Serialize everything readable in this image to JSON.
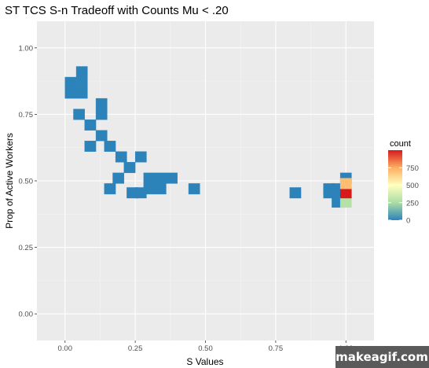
{
  "chart_data": {
    "type": "heatmap",
    "title": "ST TCS S-n Tradeoff with Counts Mu < .20",
    "xlabel": "S Values",
    "ylabel": "Prop of Active Workers",
    "xlim": [
      -0.1,
      1.1
    ],
    "ylim": [
      -0.1,
      1.1
    ],
    "x_ticks": [
      "0.00",
      "0.25",
      "0.50",
      "0.75",
      "1.00"
    ],
    "y_ticks": [
      "0.00",
      "0.25",
      "0.50",
      "0.75",
      "1.00"
    ],
    "bin_width": 0.04,
    "bin_height": 0.04,
    "grid": true,
    "legend": {
      "title": "count",
      "placement": "right",
      "labels": [
        "750",
        "500",
        "250",
        "0"
      ],
      "range": [
        0,
        1000
      ]
    },
    "tiles": [
      {
        "x": 0.02,
        "y": 0.83,
        "count": 1
      },
      {
        "x": 0.02,
        "y": 0.87,
        "count": 1
      },
      {
        "x": 0.06,
        "y": 0.83,
        "count": 1
      },
      {
        "x": 0.06,
        "y": 0.87,
        "count": 1
      },
      {
        "x": 0.06,
        "y": 0.91,
        "count": 1
      },
      {
        "x": 0.05,
        "y": 0.75,
        "count": 1
      },
      {
        "x": 0.09,
        "y": 0.71,
        "count": 1
      },
      {
        "x": 0.13,
        "y": 0.79,
        "count": 1
      },
      {
        "x": 0.13,
        "y": 0.75,
        "count": 1
      },
      {
        "x": 0.13,
        "y": 0.67,
        "count": 1
      },
      {
        "x": 0.09,
        "y": 0.63,
        "count": 1
      },
      {
        "x": 0.16,
        "y": 0.63,
        "count": 1
      },
      {
        "x": 0.2,
        "y": 0.59,
        "count": 1
      },
      {
        "x": 0.27,
        "y": 0.59,
        "count": 1
      },
      {
        "x": 0.23,
        "y": 0.55,
        "count": 1
      },
      {
        "x": 0.19,
        "y": 0.51,
        "count": 1
      },
      {
        "x": 0.16,
        "y": 0.47,
        "count": 1
      },
      {
        "x": 0.3,
        "y": 0.51,
        "count": 1
      },
      {
        "x": 0.34,
        "y": 0.51,
        "count": 1
      },
      {
        "x": 0.38,
        "y": 0.51,
        "count": 1
      },
      {
        "x": 0.3,
        "y": 0.47,
        "count": 1
      },
      {
        "x": 0.34,
        "y": 0.47,
        "count": 1
      },
      {
        "x": 0.24,
        "y": 0.455,
        "count": 1
      },
      {
        "x": 0.27,
        "y": 0.455,
        "count": 1
      },
      {
        "x": 0.46,
        "y": 0.47,
        "count": 1
      },
      {
        "x": 0.82,
        "y": 0.455,
        "count": 1
      },
      {
        "x": 0.94,
        "y": 0.47,
        "count": 1
      },
      {
        "x": 0.94,
        "y": 0.455,
        "count": 1
      },
      {
        "x": 0.97,
        "y": 0.47,
        "count": 1
      },
      {
        "x": 0.97,
        "y": 0.455,
        "count": 1
      },
      {
        "x": 0.97,
        "y": 0.42,
        "count": 1
      },
      {
        "x": 1.0,
        "y": 0.51,
        "count": 1
      },
      {
        "x": 1.0,
        "y": 0.42,
        "count": 280
      },
      {
        "x": 1.0,
        "y": 0.455,
        "count": 1000
      },
      {
        "x": 1.0,
        "y": 0.49,
        "count": 700
      }
    ]
  },
  "watermark": {
    "text": "makeagif.com"
  }
}
